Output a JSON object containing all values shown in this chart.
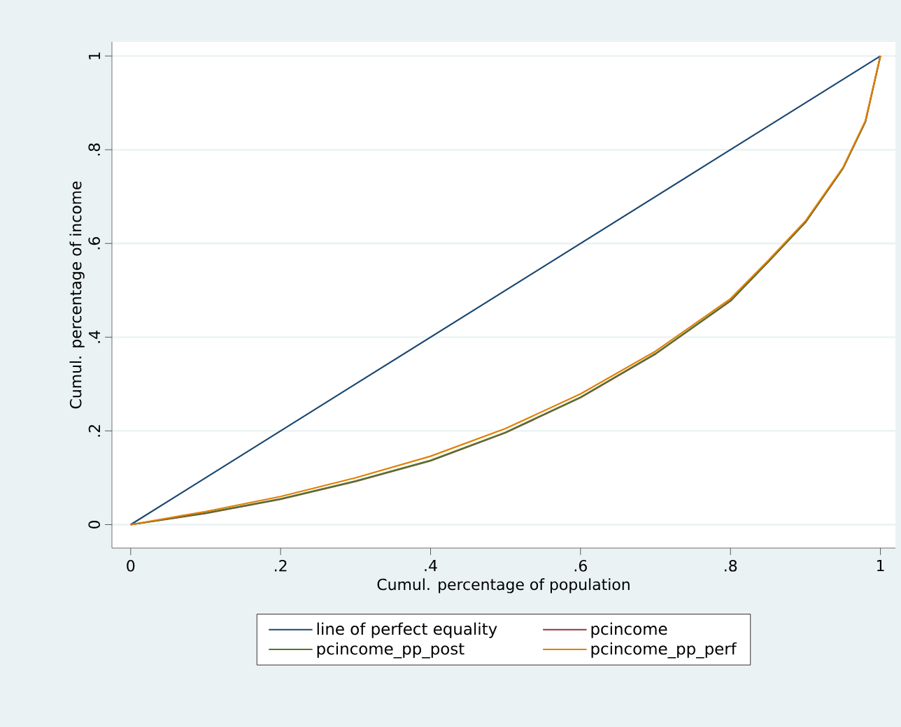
{
  "chart_data": {
    "type": "line",
    "xlabel": "Cumul. percentage of population",
    "ylabel": "Cumul. percentage of income",
    "xlim": [
      -0.025,
      1.02
    ],
    "ylim": [
      -0.05,
      1.03
    ],
    "xticks": [
      0,
      {
        "value": 0.2,
        "label": ".2"
      },
      {
        "value": 0.4,
        "label": ".4"
      },
      {
        "value": 0.6,
        "label": ".6"
      },
      {
        "value": 0.8,
        "label": ".8"
      },
      1
    ],
    "yticks": [
      0,
      {
        "value": 0.2,
        "label": ".2"
      },
      {
        "value": 0.4,
        "label": ".4"
      },
      {
        "value": 0.6,
        "label": ".6"
      },
      {
        "value": 0.8,
        "label": ".8"
      },
      1
    ],
    "grid": "y",
    "legend": "bottom",
    "marker": "none",
    "line_style": "solid",
    "series": [
      {
        "name": "line of perfect equality",
        "color": "#1a476f",
        "x": [
          0,
          1
        ],
        "values": [
          0,
          1
        ]
      },
      {
        "name": "pcincome",
        "color": "#90353b",
        "x": [
          0,
          0.1,
          0.2,
          0.3,
          0.4,
          0.5,
          0.6,
          0.7,
          0.8,
          0.85,
          0.9,
          0.95,
          0.98,
          1
        ],
        "values": [
          0,
          0.024,
          0.054,
          0.092,
          0.136,
          0.196,
          0.271,
          0.364,
          0.477,
          0.56,
          0.645,
          0.76,
          0.86,
          1
        ]
      },
      {
        "name": "pcincome_pp_post",
        "color": "#55752f",
        "x": [
          0,
          0.1,
          0.2,
          0.3,
          0.4,
          0.5,
          0.6,
          0.7,
          0.8,
          0.85,
          0.9,
          0.95,
          0.98,
          1
        ],
        "values": [
          0,
          0.025,
          0.055,
          0.093,
          0.137,
          0.197,
          0.272,
          0.365,
          0.478,
          0.56,
          0.645,
          0.76,
          0.86,
          1
        ]
      },
      {
        "name": "pcincome_pp_perf",
        "color": "#e37e00",
        "x": [
          0,
          0.1,
          0.2,
          0.3,
          0.4,
          0.5,
          0.6,
          0.7,
          0.8,
          0.85,
          0.9,
          0.95,
          0.98,
          1
        ],
        "values": [
          0,
          0.028,
          0.06,
          0.1,
          0.146,
          0.205,
          0.279,
          0.37,
          0.482,
          0.563,
          0.648,
          0.762,
          0.862,
          1
        ]
      }
    ]
  }
}
